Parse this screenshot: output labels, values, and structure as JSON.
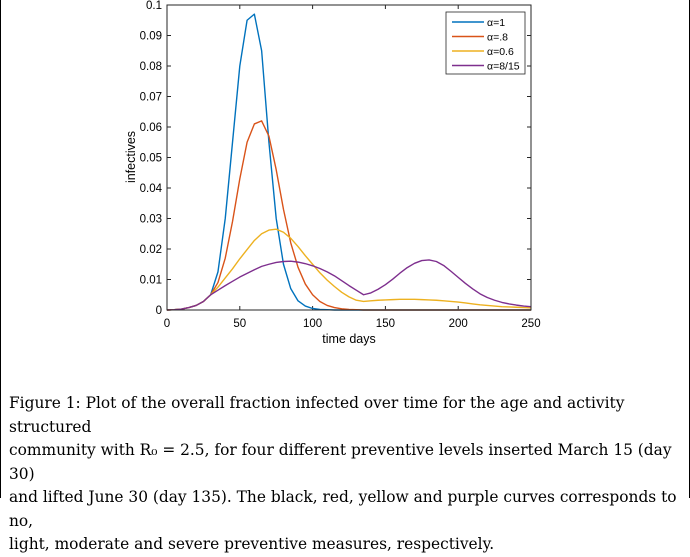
{
  "chart_data": {
    "type": "line",
    "xlabel": "time days",
    "ylabel": "infectives",
    "xlim": [
      0,
      250
    ],
    "ylim": [
      0,
      0.1
    ],
    "xticks": [
      "0",
      "50",
      "100",
      "150",
      "200",
      "250"
    ],
    "yticks": [
      "0",
      "0.01",
      "0.02",
      "0.03",
      "0.04",
      "0.05",
      "0.06",
      "0.07",
      "0.08",
      "0.09",
      "0.1"
    ],
    "legend_position": "top-right",
    "grid": false,
    "x": [
      0,
      5,
      10,
      15,
      20,
      25,
      30,
      35,
      40,
      45,
      50,
      55,
      60,
      65,
      70,
      75,
      80,
      85,
      90,
      95,
      100,
      105,
      110,
      115,
      120,
      125,
      130,
      135,
      140,
      145,
      150,
      155,
      160,
      165,
      170,
      175,
      180,
      185,
      190,
      195,
      200,
      205,
      210,
      215,
      220,
      225,
      230,
      235,
      240,
      245,
      250
    ],
    "series": [
      {
        "name": "α=1",
        "color": "#0072BD",
        "values": [
          0,
          0.0001,
          0.0003,
          0.0008,
          0.0015,
          0.0028,
          0.005,
          0.0125,
          0.03,
          0.055,
          0.08,
          0.095,
          0.097,
          0.085,
          0.055,
          0.03,
          0.015,
          0.007,
          0.003,
          0.0013,
          0.0005,
          0.0002,
          0.0001,
          0,
          0,
          0,
          0,
          0,
          0,
          0,
          0,
          0,
          0,
          0,
          0,
          0,
          0,
          0,
          0,
          0,
          0,
          0,
          0,
          0,
          0,
          0,
          0,
          0,
          0,
          0,
          0
        ]
      },
      {
        "name": "α=.8",
        "color": "#D95319",
        "values": [
          0,
          0.0001,
          0.0003,
          0.0008,
          0.0015,
          0.0028,
          0.005,
          0.009,
          0.017,
          0.029,
          0.043,
          0.055,
          0.061,
          0.062,
          0.057,
          0.046,
          0.033,
          0.022,
          0.014,
          0.0085,
          0.005,
          0.0028,
          0.0015,
          0.0008,
          0.0004,
          0.0002,
          0.0001,
          0,
          0,
          0,
          0,
          0,
          0,
          0,
          0,
          0,
          0,
          0,
          0,
          0,
          0,
          0,
          0,
          0,
          0,
          0,
          0,
          0,
          0,
          0,
          0
        ]
      },
      {
        "name": "α=0.6",
        "color": "#EDB120",
        "values": [
          0,
          0.0001,
          0.0003,
          0.0008,
          0.0015,
          0.0028,
          0.005,
          0.0075,
          0.0105,
          0.0135,
          0.0168,
          0.0198,
          0.0228,
          0.025,
          0.0262,
          0.0265,
          0.0255,
          0.0235,
          0.0208,
          0.0178,
          0.015,
          0.0122,
          0.0098,
          0.0077,
          0.0058,
          0.0043,
          0.0032,
          0.0028,
          0.003,
          0.0032,
          0.0033,
          0.0034,
          0.0035,
          0.0035,
          0.0035,
          0.0034,
          0.0033,
          0.0032,
          0.003,
          0.0028,
          0.0026,
          0.0023,
          0.002,
          0.0017,
          0.0015,
          0.0013,
          0.0011,
          0.001,
          0.0009,
          0.0008,
          0.0007
        ]
      },
      {
        "name": "α=8/15",
        "color": "#7E2F8E",
        "values": [
          0,
          0.0001,
          0.0003,
          0.0008,
          0.0015,
          0.0028,
          0.005,
          0.0065,
          0.008,
          0.0094,
          0.0108,
          0.012,
          0.0132,
          0.0143,
          0.015,
          0.0156,
          0.0159,
          0.016,
          0.0157,
          0.0152,
          0.0145,
          0.0136,
          0.0125,
          0.0112,
          0.0096,
          0.008,
          0.0065,
          0.005,
          0.0056,
          0.0068,
          0.0083,
          0.0101,
          0.0121,
          0.0139,
          0.0153,
          0.0162,
          0.0164,
          0.0159,
          0.0146,
          0.0127,
          0.0107,
          0.0087,
          0.0069,
          0.0053,
          0.0041,
          0.0032,
          0.0025,
          0.002,
          0.0016,
          0.0013,
          0.0011
        ]
      }
    ]
  },
  "caption": {
    "lines": [
      "Figure 1: Plot of the overall fraction infected over time for the age and activity structured",
      "community with R₀ = 2.5, for four different preventive levels inserted March 15 (day 30)",
      "and lifted June 30 (day 135). The black, red, yellow and purple curves corresponds to no,",
      "light, moderate and severe preventive measures, respectively."
    ]
  }
}
